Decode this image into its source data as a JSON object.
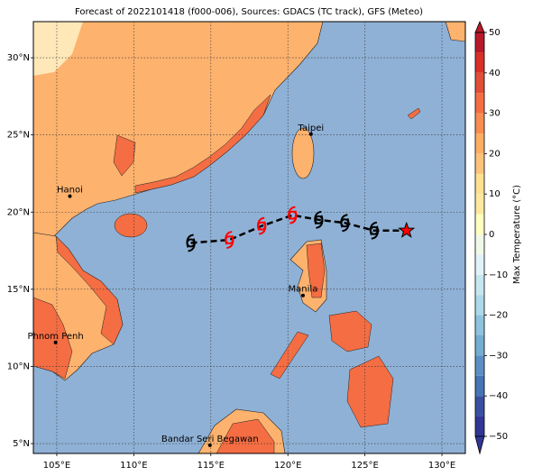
{
  "chart_data": {
    "type": "map",
    "title": "Forecast of 2022101418 (f000-006), Sources: GDACS (TC track), GFS (Meteo)",
    "xlim": [
      103.48,
      131.52
    ],
    "ylim": [
      4.36,
      32.34
    ],
    "xticks": [
      {
        "value": 105,
        "label": "105°E"
      },
      {
        "value": 110,
        "label": "110°E"
      },
      {
        "value": 115,
        "label": "115°E"
      },
      {
        "value": 120,
        "label": "120°E"
      },
      {
        "value": 125,
        "label": "125°E"
      },
      {
        "value": 130,
        "label": "130°E"
      }
    ],
    "yticks": [
      {
        "value": 5,
        "label": "5°N"
      },
      {
        "value": 10,
        "label": "10°N"
      },
      {
        "value": 15,
        "label": "15°N"
      },
      {
        "value": 20,
        "label": "20°N"
      },
      {
        "value": 25,
        "label": "25°N"
      },
      {
        "value": 30,
        "label": "30°N"
      }
    ],
    "grid": true,
    "cities": [
      {
        "name": "Taipei",
        "lon": 121.5,
        "lat": 25.05
      },
      {
        "name": "Hanoi",
        "lon": 105.85,
        "lat": 21.03
      },
      {
        "name": "Manila",
        "lon": 120.98,
        "lat": 14.6
      },
      {
        "name": "Phnom Penh",
        "lon": 104.92,
        "lat": 11.55
      },
      {
        "name": "Bandar Seri Begawan",
        "lon": 114.94,
        "lat": 4.89
      }
    ],
    "track": {
      "lon": [
        113.7,
        116.2,
        118.3,
        120.3,
        122.0,
        123.7,
        125.6,
        127.7
      ],
      "lat": [
        18.0,
        18.2,
        19.1,
        19.8,
        19.5,
        19.3,
        18.8,
        18.8
      ],
      "colors": [
        "#000000",
        "#ff0000",
        "#ff0000",
        "#ff0000",
        "#000000",
        "#000000",
        "#000000",
        "#ff0000"
      ]
    },
    "colorbar": {
      "label": "Max Temperature (°C)",
      "bounds": [
        -50,
        -45,
        -40,
        -35,
        -30,
        -25,
        -20,
        -15,
        -10,
        -5,
        0,
        5,
        10,
        15,
        20,
        25,
        30,
        35,
        40,
        45,
        50
      ],
      "colors": [
        "#313695",
        "#3a4fa0",
        "#4575b4",
        "#5b8fc4",
        "#74add1",
        "#8fc3dd",
        "#abd9e9",
        "#c6e6f0",
        "#e0f3f8",
        "#f0f9e8",
        "#ffffbf",
        "#fee8a0",
        "#fee090",
        "#fdc378",
        "#fdae61",
        "#f88d51",
        "#f46d43",
        "#e04e35",
        "#d73027",
        "#b8192a"
      ],
      "ticks": [
        {
          "value": -50,
          "label": "−50"
        },
        {
          "value": -40,
          "label": "−40"
        },
        {
          "value": -30,
          "label": "−30"
        },
        {
          "value": -20,
          "label": "−20"
        },
        {
          "value": -10,
          "label": "−10"
        },
        0,
        10,
        20,
        30,
        40,
        50
      ]
    }
  }
}
